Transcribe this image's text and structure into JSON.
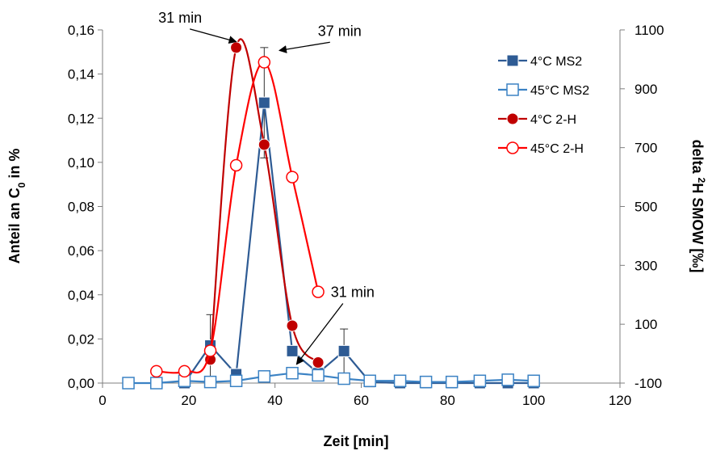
{
  "chart_data": {
    "type": "line",
    "xlabel": "Zeit [min]",
    "ylabel_left": {
      "prefix": "Anteil an C",
      "sub": "0",
      "suffix": " in %"
    },
    "ylabel_right": {
      "prefix": "delta ",
      "sup": "2",
      "suffix": "H SMOW [‰]"
    },
    "xlim": [
      0,
      120
    ],
    "ylim_left": [
      0,
      0.16
    ],
    "ylim_right": [
      -100,
      1100
    ],
    "x_ticks": [
      "0",
      "20",
      "40",
      "60",
      "80",
      "100",
      "120"
    ],
    "y_left_ticks": [
      "0,00",
      "0,02",
      "0,04",
      "0,06",
      "0,08",
      "0,10",
      "0,12",
      "0,14",
      "0,16"
    ],
    "y_right_ticks": [
      "-100",
      "100",
      "300",
      "500",
      "700",
      "900",
      "1100"
    ],
    "legend_position": "top-right",
    "series": [
      {
        "name": "4°C MS2",
        "axis": "left",
        "color": "#2e5b94",
        "marker": "square-filled",
        "smooth": false,
        "x": [
          19,
          25,
          31,
          37.5,
          44,
          50,
          56,
          62,
          69,
          75,
          81,
          87.5,
          94,
          100
        ],
        "y": [
          0.0,
          0.017,
          0.004,
          0.127,
          0.0145,
          0.0045,
          0.0145,
          0.0005,
          0.0,
          0.0,
          0.0,
          0.0,
          0.0,
          0.0
        ],
        "error": [
          0,
          0.014,
          0,
          0.025,
          0,
          0,
          0.01,
          0,
          0,
          0,
          0,
          0,
          0,
          0
        ]
      },
      {
        "name": "45°C MS2",
        "axis": "left",
        "color": "#3b82c4",
        "marker": "square-open",
        "smooth": false,
        "x": [
          6,
          12.5,
          19,
          25,
          31,
          37.5,
          44,
          50,
          56,
          62,
          69,
          75,
          81,
          87.5,
          94,
          100
        ],
        "y": [
          0.0,
          0.0,
          0.001,
          0.0005,
          0.001,
          0.003,
          0.0045,
          0.0035,
          0.002,
          0.001,
          0.001,
          0.0005,
          0.0005,
          0.001,
          0.0015,
          0.001
        ],
        "error": [
          0,
          0,
          0,
          0,
          0,
          0,
          0.002,
          0,
          0,
          0,
          0,
          0,
          0,
          0,
          0,
          0
        ]
      },
      {
        "name": "4°C 2-H",
        "axis": "right",
        "color": "#c00000",
        "marker": "circle-filled",
        "smooth": true,
        "x": [
          25,
          31,
          37.5,
          44,
          50
        ],
        "y": [
          -20,
          1040,
          710,
          95,
          -30
        ]
      },
      {
        "name": "45°C 2-H",
        "axis": "right",
        "color": "#ff0000",
        "marker": "circle-open",
        "smooth": true,
        "x": [
          12.5,
          19,
          25,
          31,
          37.5,
          44,
          50
        ],
        "y": [
          -60,
          -60,
          10,
          640,
          990,
          600,
          210
        ]
      }
    ],
    "annotations": [
      {
        "text": "31 min",
        "label_x": 18,
        "label_y": 1125,
        "label_axis": "right",
        "point_x": 31,
        "point_y": 1060,
        "point_axis": "right"
      },
      {
        "text": "37 min",
        "label_x": 55,
        "label_y": 1080,
        "label_axis": "right",
        "point_x": 41,
        "point_y": 1030,
        "point_axis": "right"
      },
      {
        "text": "31 min",
        "label_x": 58,
        "label_y": 0.039,
        "label_axis": "left",
        "point_x": 45,
        "point_y": 0.0085,
        "point_axis": "left"
      }
    ]
  }
}
